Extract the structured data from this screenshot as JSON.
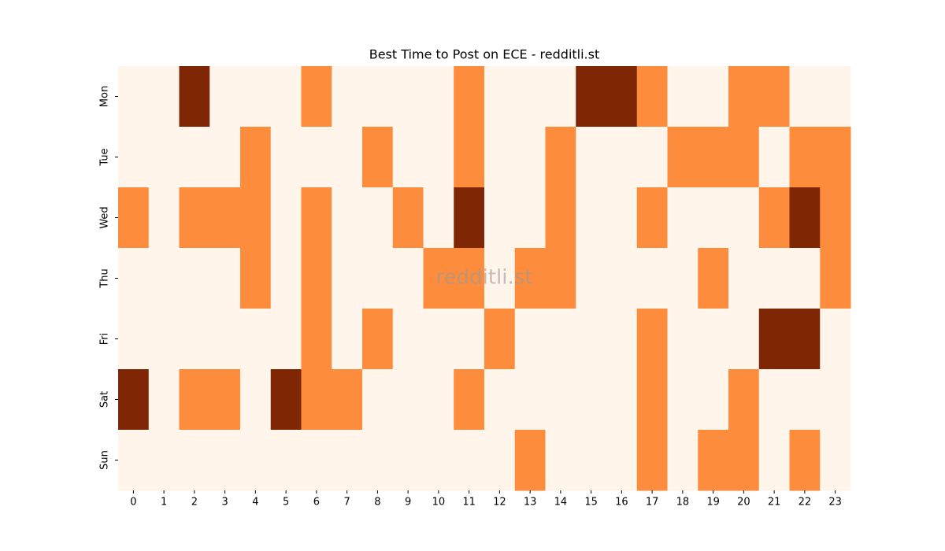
{
  "chart_data": {
    "type": "heatmap",
    "title": "Best Time to Post on ECE - redditli.st",
    "watermark": "redditli.st",
    "x_categories": [
      "0",
      "1",
      "2",
      "3",
      "4",
      "5",
      "6",
      "7",
      "8",
      "9",
      "10",
      "11",
      "12",
      "13",
      "14",
      "15",
      "16",
      "17",
      "18",
      "19",
      "20",
      "21",
      "22",
      "23"
    ],
    "y_categories": [
      "Mon",
      "Tue",
      "Wed",
      "Thu",
      "Fri",
      "Sat",
      "Sun"
    ],
    "values": [
      [
        0,
        0,
        2,
        0,
        0,
        0,
        1,
        0,
        0,
        0,
        0,
        1,
        0,
        0,
        0,
        2,
        2,
        1,
        0,
        0,
        1,
        1,
        0,
        0
      ],
      [
        0,
        0,
        0,
        0,
        1,
        0,
        0,
        0,
        1,
        0,
        0,
        1,
        0,
        0,
        1,
        0,
        0,
        0,
        1,
        1,
        1,
        0,
        1,
        1
      ],
      [
        1,
        0,
        1,
        1,
        1,
        0,
        1,
        0,
        0,
        1,
        0,
        2,
        0,
        0,
        1,
        0,
        0,
        1,
        0,
        0,
        0,
        1,
        2,
        1
      ],
      [
        0,
        0,
        0,
        0,
        1,
        0,
        1,
        0,
        0,
        0,
        1,
        1,
        0,
        1,
        1,
        0,
        0,
        0,
        0,
        1,
        0,
        0,
        0,
        1
      ],
      [
        0,
        0,
        0,
        0,
        0,
        0,
        1,
        0,
        1,
        0,
        0,
        0,
        1,
        0,
        0,
        0,
        0,
        1,
        0,
        0,
        0,
        2,
        2,
        0
      ],
      [
        2,
        0,
        1,
        1,
        0,
        2,
        1,
        1,
        0,
        0,
        0,
        1,
        0,
        0,
        0,
        0,
        0,
        1,
        0,
        0,
        1,
        0,
        0,
        0
      ],
      [
        0,
        0,
        0,
        0,
        0,
        0,
        0,
        0,
        0,
        0,
        0,
        0,
        0,
        1,
        0,
        0,
        0,
        1,
        0,
        1,
        1,
        0,
        1,
        0
      ]
    ],
    "vlim": [
      0,
      2
    ],
    "colors": [
      "#fff5eb",
      "#fd8d3c",
      "#7f2704"
    ]
  }
}
